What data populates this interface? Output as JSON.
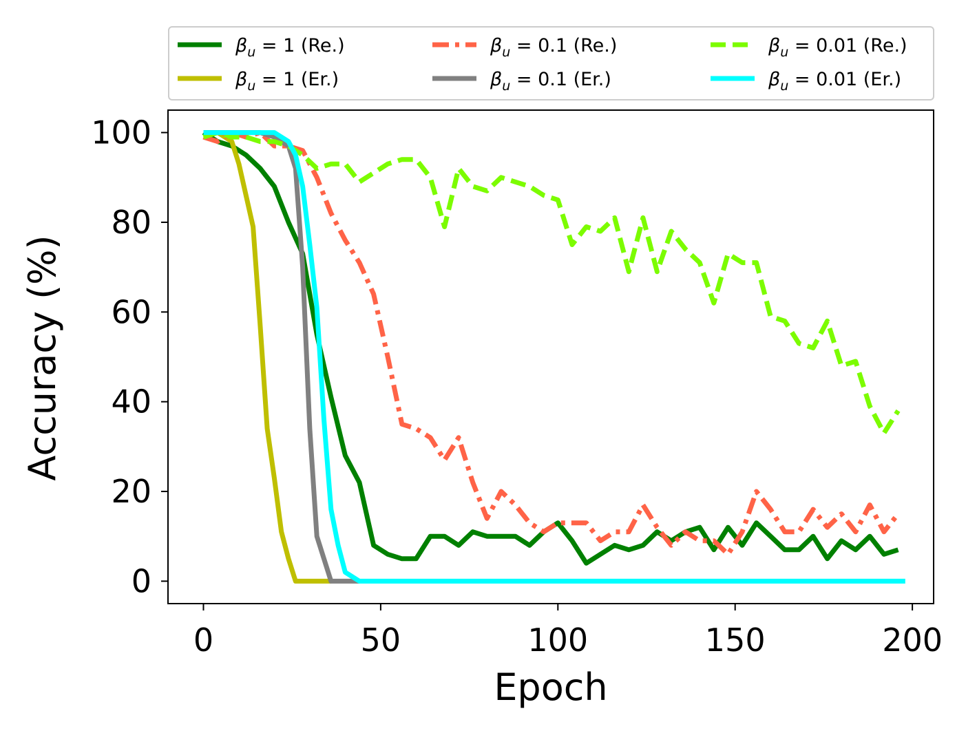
{
  "chart_data": {
    "type": "line",
    "xlabel": "Epoch",
    "ylabel": "Accuracy (%)",
    "xlim": [
      -10,
      206
    ],
    "ylim": [
      -5,
      105
    ],
    "xticks": [
      0,
      50,
      100,
      150,
      200
    ],
    "yticks": [
      0,
      20,
      40,
      60,
      80,
      100
    ],
    "legend_placement": "top, outside, 3 columns",
    "series": [
      {
        "name": "βu = 1 (Re.)",
        "beta": "1",
        "tag": "(Re.)",
        "color": "#008000",
        "dash": "solid",
        "x": [
          0,
          4,
          8,
          12,
          16,
          20,
          24,
          28,
          32,
          36,
          40,
          44,
          48,
          52,
          56,
          60,
          64,
          68,
          72,
          76,
          80,
          84,
          88,
          92,
          96,
          100,
          104,
          108,
          112,
          116,
          120,
          124,
          128,
          132,
          136,
          140,
          144,
          148,
          152,
          156,
          160,
          164,
          168,
          172,
          176,
          180,
          184,
          188,
          192,
          196
        ],
        "y": [
          100,
          98,
          97,
          95,
          92,
          88,
          80,
          73,
          55,
          41,
          28,
          22,
          8,
          6,
          5,
          5,
          10,
          10,
          8,
          11,
          10,
          10,
          10,
          8,
          11,
          13,
          9,
          4,
          6,
          8,
          7,
          8,
          11,
          9,
          11,
          12,
          7,
          12,
          8,
          13,
          10,
          7,
          7,
          10,
          5,
          9,
          7,
          10,
          6,
          7
        ]
      },
      {
        "name": "βu = 1 (Er.)",
        "beta": "1",
        "tag": "(Er.)",
        "color": "#bfbf00",
        "dash": "solid",
        "x": [
          0,
          4,
          8,
          10,
          12,
          14,
          16,
          18,
          20,
          22,
          24,
          26,
          28,
          32,
          36
        ],
        "y": [
          100,
          100,
          98,
          93,
          86,
          79,
          57,
          34,
          23,
          11,
          5,
          0,
          0,
          0,
          0
        ]
      },
      {
        "name": "βu = 0.1 (Re.)",
        "beta": "0.1",
        "tag": "(Re.)",
        "color": "#ff6347",
        "dash": "dashdot",
        "x": [
          0,
          4,
          8,
          12,
          16,
          20,
          24,
          28,
          32,
          36,
          40,
          44,
          48,
          52,
          56,
          60,
          64,
          68,
          72,
          76,
          80,
          84,
          88,
          92,
          96,
          100,
          104,
          108,
          112,
          116,
          120,
          124,
          128,
          132,
          136,
          140,
          144,
          148,
          152,
          156,
          160,
          164,
          168,
          172,
          176,
          180,
          184,
          188,
          192,
          196
        ],
        "y": [
          99,
          98,
          100,
          99,
          100,
          97,
          97,
          96,
          90,
          82,
          76,
          71,
          64,
          50,
          35,
          34,
          32,
          27,
          32,
          22,
          14,
          20,
          17,
          13,
          11,
          13,
          13,
          13,
          9,
          11,
          11,
          17,
          12,
          8,
          11,
          9,
          9,
          6,
          11,
          20,
          16,
          11,
          11,
          16,
          12,
          15,
          11,
          17,
          11,
          15
        ]
      },
      {
        "name": "βu = 0.1 (Er.)",
        "beta": "0.1",
        "tag": "(Er.)",
        "color": "#808080",
        "dash": "solid",
        "x": [
          0,
          4,
          8,
          12,
          16,
          20,
          24,
          26,
          28,
          30,
          32,
          34,
          36,
          40,
          44
        ],
        "y": [
          100,
          100,
          100,
          100,
          100,
          99,
          97,
          92,
          70,
          34,
          10,
          5,
          0,
          0,
          0
        ]
      },
      {
        "name": "βu = 0.01 (Re.)",
        "beta": "0.01",
        "tag": "(Re.)",
        "color": "#7cfc00",
        "dash": "dashed",
        "x": [
          0,
          4,
          8,
          12,
          16,
          20,
          24,
          28,
          32,
          36,
          40,
          44,
          48,
          52,
          56,
          60,
          64,
          68,
          72,
          76,
          80,
          84,
          88,
          92,
          96,
          100,
          104,
          108,
          112,
          116,
          120,
          124,
          128,
          132,
          136,
          140,
          144,
          148,
          152,
          156,
          160,
          164,
          168,
          172,
          176,
          180,
          184,
          188,
          192,
          196
        ],
        "y": [
          99,
          100,
          99,
          99,
          98,
          98,
          97,
          95,
          92,
          93,
          93,
          89,
          91,
          93,
          94,
          94,
          90,
          79,
          92,
          88,
          87,
          90,
          89,
          88,
          86,
          85,
          75,
          79,
          78,
          81,
          69,
          81,
          69,
          78,
          74,
          71,
          62,
          73,
          71,
          71,
          59,
          58,
          53,
          52,
          58,
          48,
          49,
          39,
          33,
          38
        ]
      },
      {
        "name": "βu = 0.01 (Er.)",
        "beta": "0.01",
        "tag": "(Er.)",
        "color": "#00ffff",
        "dash": "solid",
        "x": [
          0,
          4,
          8,
          12,
          16,
          20,
          24,
          26,
          28,
          30,
          32,
          34,
          36,
          38,
          40,
          44,
          60,
          100,
          150,
          198
        ],
        "y": [
          100,
          100,
          100,
          100,
          100,
          100,
          98,
          95,
          88,
          75,
          61,
          36,
          16,
          8,
          2,
          0,
          0,
          0,
          0,
          0
        ]
      }
    ],
    "legend": [
      {
        "prefix": "β",
        "sub": "u",
        "value": "= 1",
        "tag": "(Re.)",
        "series": 0
      },
      {
        "prefix": "β",
        "sub": "u",
        "value": "= 0.1",
        "tag": "(Re.)",
        "series": 2
      },
      {
        "prefix": "β",
        "sub": "u",
        "value": "= 0.01",
        "tag": "(Re.)",
        "series": 4
      },
      {
        "prefix": "β",
        "sub": "u",
        "value": "= 1",
        "tag": "(Er.)",
        "series": 1
      },
      {
        "prefix": "β",
        "sub": "u",
        "value": "= 0.1",
        "tag": "(Er.)",
        "series": 3
      },
      {
        "prefix": "β",
        "sub": "u",
        "value": "= 0.01",
        "tag": "(Er.)",
        "series": 5
      }
    ]
  }
}
